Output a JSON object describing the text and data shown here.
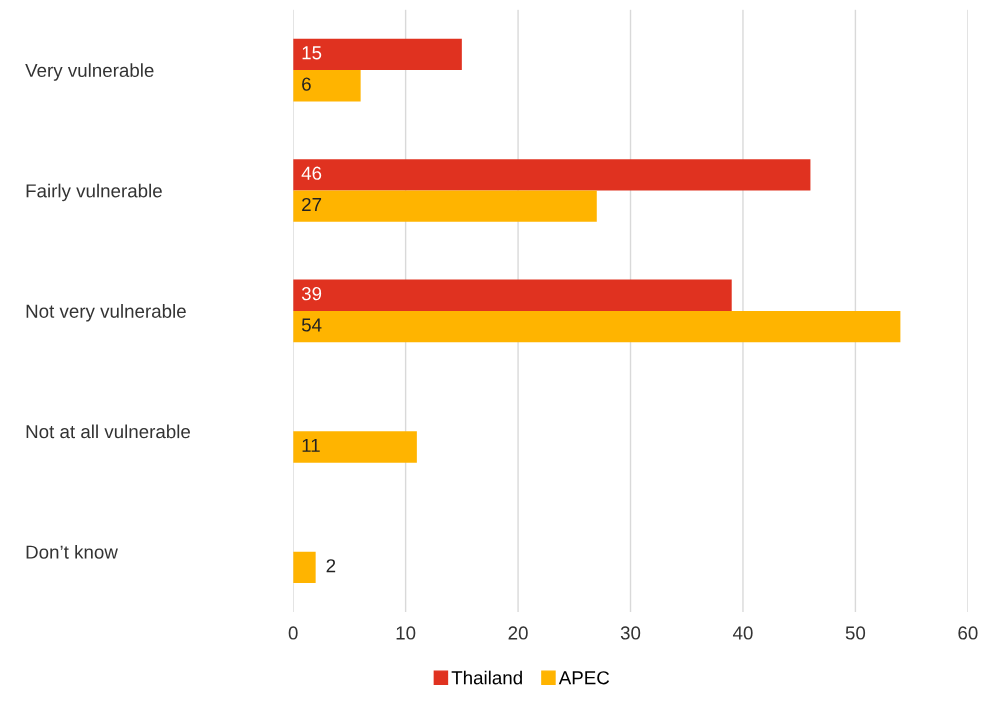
{
  "chart_data": {
    "type": "bar",
    "orientation": "horizontal",
    "categories": [
      "Very vulnerable",
      "Fairly vulnerable",
      "Not very vulnerable",
      "Not at all vulnerable",
      "Don’t know"
    ],
    "series": [
      {
        "name": "Thailand",
        "color": "#e03220",
        "values": [
          15,
          46,
          39,
          null,
          null
        ]
      },
      {
        "name": "APEC",
        "color": "#ffb400",
        "values": [
          6,
          27,
          54,
          11,
          2
        ]
      }
    ],
    "xlim": [
      0,
      60
    ],
    "xticks": [
      0,
      10,
      20,
      30,
      40,
      50,
      60
    ],
    "grid": "x",
    "legend": "bottom",
    "data_labels": true
  }
}
